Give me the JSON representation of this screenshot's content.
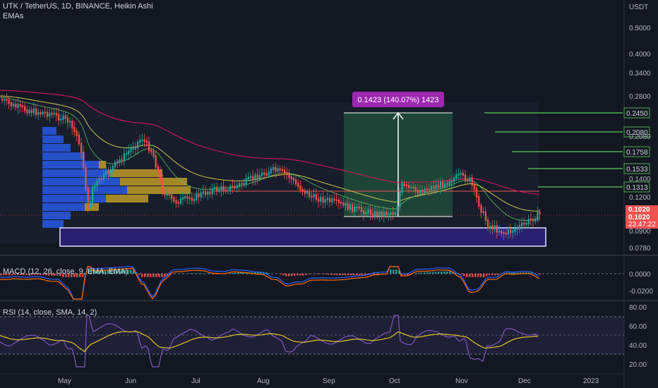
{
  "header": {
    "symbol_line": "UTK / TetherUS, 1D, BINANCE, Heikin Ashi",
    "indicator": "EMAs",
    "currency": "USDT"
  },
  "price_axis": {
    "labels": [
      "0.5000",
      "0.4000",
      "0.3400",
      "0.2800",
      "0.2080",
      "0.1400",
      "0.1200",
      "0.0900",
      "0.0780"
    ],
    "current_price": "0.1020",
    "current_price2": "0.1020",
    "countdown": "23:47:22"
  },
  "target_levels": [
    "0.2450",
    "0.2080",
    "0.1758",
    "0.1533",
    "0.1313"
  ],
  "measure_label": "0.1423 (140.07%) 1423",
  "macd": {
    "title": "MACD (12, 26, close, 9, EMA, EMA)",
    "labels": [
      "0.0000",
      "-0.0200"
    ]
  },
  "rsi": {
    "title": "RSI (14, close, SMA, 14, 2)",
    "labels": [
      "80.00",
      "60.00",
      "40.00",
      "20.00"
    ]
  },
  "time_axis": [
    "May",
    "Jun",
    "Jul",
    "Aug",
    "Sep",
    "Oct",
    "Nov",
    "Dec",
    "2023"
  ],
  "colors": {
    "background": "#131722",
    "up": "#26a69a",
    "down": "#ef5350",
    "target_line": "#4caf50",
    "measure_fill": "#1e4b3a",
    "label_purple": "#9c27b0",
    "support_box": "#3a2a8a",
    "red_ema": "#c2185b",
    "yellow_ema": "#c8c84a",
    "vp_blue": "#2962ff",
    "vp_gold": "#c9a227"
  }
}
